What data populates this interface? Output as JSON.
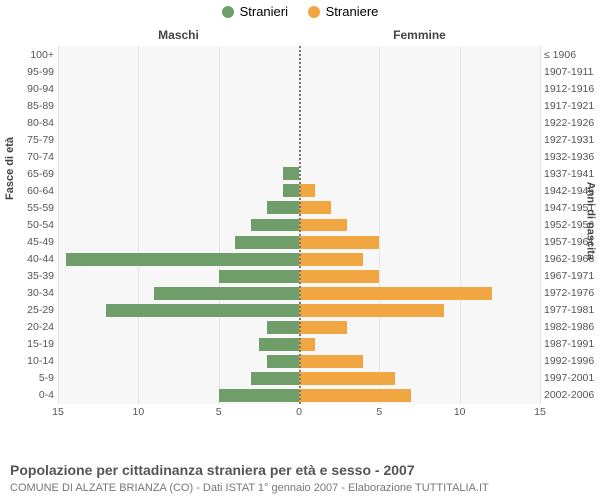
{
  "legend": {
    "male_label": "Stranieri",
    "female_label": "Straniere"
  },
  "colors": {
    "male": "#6f9e6a",
    "female": "#f0a742",
    "plot_bg": "#f7f7f7",
    "grid": "#e5e5e5",
    "center_dash": "#777777",
    "text": "#555555",
    "label_text": "#444444"
  },
  "headers": {
    "left": "Maschi",
    "right": "Femmine"
  },
  "axis": {
    "left_title": "Fasce di età",
    "right_title": "Anni di nascita",
    "x_max": 15,
    "x_ticks": [
      15,
      10,
      5,
      0,
      5,
      10,
      15
    ]
  },
  "rows": [
    {
      "age": "100+",
      "birth": "≤ 1906",
      "m": 0,
      "f": 0
    },
    {
      "age": "95-99",
      "birth": "1907-1911",
      "m": 0,
      "f": 0
    },
    {
      "age": "90-94",
      "birth": "1912-1916",
      "m": 0,
      "f": 0
    },
    {
      "age": "85-89",
      "birth": "1917-1921",
      "m": 0,
      "f": 0
    },
    {
      "age": "80-84",
      "birth": "1922-1926",
      "m": 0,
      "f": 0
    },
    {
      "age": "75-79",
      "birth": "1927-1931",
      "m": 0,
      "f": 0
    },
    {
      "age": "70-74",
      "birth": "1932-1936",
      "m": 0,
      "f": 0
    },
    {
      "age": "65-69",
      "birth": "1937-1941",
      "m": 1,
      "f": 0
    },
    {
      "age": "60-64",
      "birth": "1942-1946",
      "m": 1,
      "f": 1
    },
    {
      "age": "55-59",
      "birth": "1947-1951",
      "m": 2,
      "f": 2
    },
    {
      "age": "50-54",
      "birth": "1952-1956",
      "m": 3,
      "f": 3
    },
    {
      "age": "45-49",
      "birth": "1957-1961",
      "m": 4,
      "f": 5
    },
    {
      "age": "40-44",
      "birth": "1962-1966",
      "m": 14.5,
      "f": 4
    },
    {
      "age": "35-39",
      "birth": "1967-1971",
      "m": 5,
      "f": 5
    },
    {
      "age": "30-34",
      "birth": "1972-1976",
      "m": 9,
      "f": 12
    },
    {
      "age": "25-29",
      "birth": "1977-1981",
      "m": 12,
      "f": 9
    },
    {
      "age": "20-24",
      "birth": "1982-1986",
      "m": 2,
      "f": 3
    },
    {
      "age": "15-19",
      "birth": "1987-1991",
      "m": 2.5,
      "f": 1
    },
    {
      "age": "10-14",
      "birth": "1992-1996",
      "m": 2,
      "f": 4
    },
    {
      "age": "5-9",
      "birth": "1997-2001",
      "m": 3,
      "f": 6
    },
    {
      "age": "0-4",
      "birth": "2002-2006",
      "m": 5,
      "f": 7
    }
  ],
  "footer": {
    "title": "Popolazione per cittadinanza straniera per età e sesso - 2007",
    "sub": "COMUNE DI ALZATE BRIANZA (CO) - Dati ISTAT 1° gennaio 2007 - Elaborazione TUTTITALIA.IT"
  }
}
